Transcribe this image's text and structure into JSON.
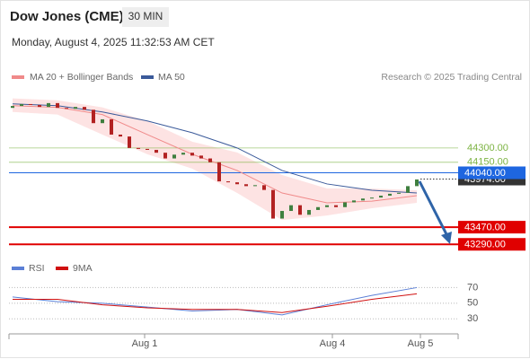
{
  "header": {
    "title": "Dow Jones (CME)",
    "timeframe": "30 MIN",
    "timestamp": "Monday, August 4, 2025 11:32:53 AM CET"
  },
  "chart_data": [
    {
      "type": "candlestick",
      "credit": "Research © 2025 Trading Central",
      "ylim": [
        43170,
        44910
      ],
      "up_color": "#3f7f3f",
      "down_color": "#b22222",
      "open": [
        44720,
        44740,
        44760,
        44750,
        44730,
        44770,
        44720,
        44710,
        44730,
        44700,
        44560,
        44600,
        44440,
        44420,
        44300,
        44290,
        44280,
        44250,
        44190,
        44230,
        44250,
        44220,
        44190,
        44150,
        43950,
        43940,
        43920,
        43900,
        43910,
        43860,
        43560,
        43640,
        43700,
        43600,
        43650,
        43680,
        43700,
        43680,
        43730,
        43750,
        43770,
        43780,
        43800,
        43820,
        43830,
        43900
      ],
      "close": [
        44740,
        44760,
        44750,
        44730,
        44770,
        44720,
        44710,
        44730,
        44700,
        44560,
        44600,
        44440,
        44420,
        44300,
        44290,
        44280,
        44250,
        44190,
        44230,
        44250,
        44220,
        44190,
        44150,
        43950,
        43940,
        43920,
        43900,
        43910,
        43860,
        43560,
        43640,
        43700,
        43600,
        43650,
        43680,
        43700,
        43680,
        43730,
        43750,
        43770,
        43780,
        43800,
        43820,
        43830,
        43900,
        43970
      ],
      "indicator_x": [
        0,
        5,
        10,
        15,
        20,
        25,
        30,
        35,
        40,
        45
      ],
      "series": [
        {
          "name": "MA 20 + Bollinger Bands",
          "color": "#f08a8a",
          "band_color": "#fde3e3",
          "values": [
            44743,
            44725,
            44650,
            44440,
            44234,
            44064,
            43828,
            43725,
            43743,
            43800
          ],
          "upper": [
            44819,
            44800,
            44725,
            44583,
            44366,
            44253,
            44017,
            43875,
            43875,
            43857
          ],
          "lower": [
            44677,
            44650,
            44440,
            44234,
            44083,
            43828,
            43545,
            43592,
            43668,
            43725
          ]
        },
        {
          "name": "MA 50",
          "color": "#3b5a9a",
          "values": [
            44762,
            44743,
            44677,
            44583,
            44460,
            44300,
            44064,
            43923,
            43857,
            43828
          ]
        }
      ],
      "levels": [
        {
          "value": 44300,
          "label": "44300.00",
          "color": "#7cb342",
          "style": "text"
        },
        {
          "value": 44150,
          "label": "44150.00",
          "color": "#7cb342",
          "style": "text"
        },
        {
          "value": 43974,
          "label": "43974.00",
          "color": "#333333",
          "style": "box"
        },
        {
          "value": 44040,
          "label": "44040.00",
          "color": "#1e66e0",
          "style": "box"
        },
        {
          "value": 43470,
          "label": "43470.00",
          "color": "#e00000",
          "style": "box"
        },
        {
          "value": 43290,
          "label": "43290.00",
          "color": "#e00000",
          "style": "box"
        }
      ],
      "xticks": [
        {
          "value": 14.7,
          "label": "Aug 1"
        },
        {
          "value": 35.6,
          "label": "Aug 4"
        },
        {
          "value": 45.4,
          "label": "Aug 5"
        }
      ]
    },
    {
      "type": "line",
      "ylim": [
        13,
        82
      ],
      "yticks": [
        30,
        50,
        70
      ],
      "x": [
        0,
        5,
        10,
        15,
        20,
        25,
        30,
        35,
        40,
        45
      ],
      "series": [
        {
          "name": "RSI",
          "color": "#5b7fd6",
          "values": [
            58,
            52,
            50,
            45,
            40,
            42,
            35,
            48,
            60,
            70
          ]
        },
        {
          "name": "9MA",
          "color": "#d01010",
          "values": [
            55,
            55,
            48,
            44,
            42,
            42,
            38,
            46,
            55,
            62
          ]
        }
      ]
    }
  ]
}
